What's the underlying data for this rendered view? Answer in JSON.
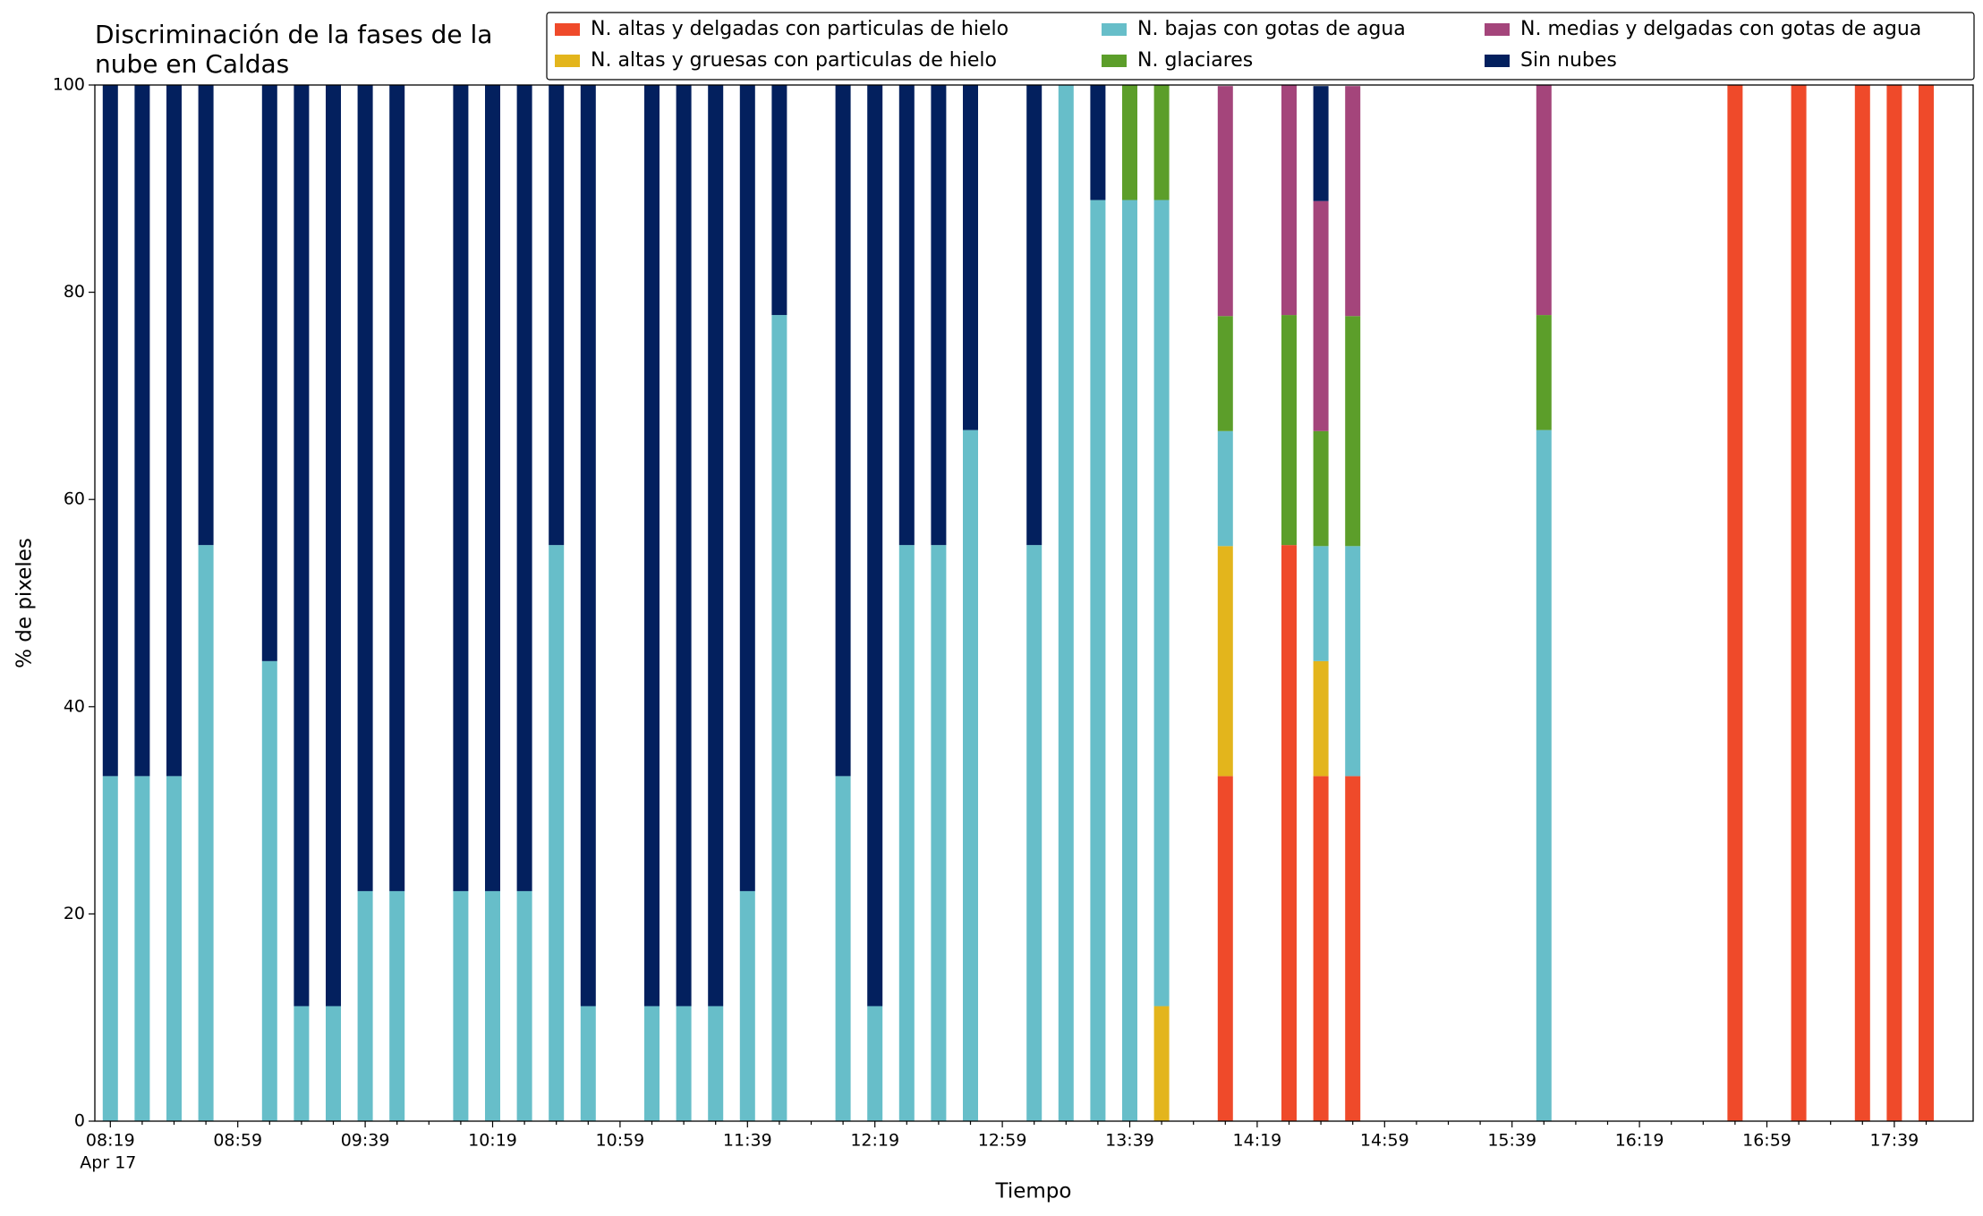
{
  "chart_data": {
    "type": "stacked_bar",
    "title": [
      "Discriminación de la fases de la",
      "nube en Caldas"
    ],
    "x_label": "Tiempo",
    "y_label": "% de pixeles",
    "date_label": "Apr 17",
    "categories": [
      "08:19",
      null,
      null,
      null,
      "08:59",
      null,
      null,
      null,
      "09:39",
      null,
      null,
      null,
      "10:19",
      null,
      null,
      null,
      "10:59",
      null,
      null,
      null,
      "11:39",
      null,
      null,
      null,
      "12:19",
      null,
      null,
      null,
      "12:59",
      null,
      null,
      null,
      "13:39",
      null,
      null,
      null,
      "14:19",
      null,
      null,
      null,
      "14:59",
      null,
      null,
      null,
      "15:39",
      null,
      null,
      null,
      "16:19",
      null,
      null,
      null,
      "16:59",
      null,
      null,
      null,
      "17:39",
      null
    ],
    "ylim": [
      0,
      100
    ],
    "yticks": [
      0,
      20,
      40,
      60,
      80,
      100
    ],
    "legend": "upper right",
    "series": [
      {
        "name": "N. altas y delgadas con particulas de hielo",
        "color": "#ef4a2a",
        "values": [
          null,
          null,
          null,
          null,
          null,
          null,
          null,
          null,
          null,
          null,
          null,
          null,
          null,
          null,
          null,
          null,
          null,
          null,
          null,
          null,
          null,
          null,
          null,
          null,
          null,
          null,
          null,
          null,
          null,
          null,
          null,
          null,
          null,
          null,
          null,
          33.3,
          null,
          55.6,
          33.3,
          33.3,
          null,
          null,
          null,
          null,
          null,
          null,
          null,
          null,
          null,
          null,
          null,
          100,
          null,
          100,
          null,
          100,
          100,
          100
        ]
      },
      {
        "name": "N. altas y gruesas con particulas de hielo",
        "color": "#e3b51c",
        "values": [
          null,
          null,
          null,
          null,
          null,
          null,
          null,
          null,
          null,
          null,
          null,
          null,
          null,
          null,
          null,
          null,
          null,
          null,
          null,
          null,
          null,
          null,
          null,
          null,
          null,
          null,
          null,
          null,
          null,
          null,
          null,
          null,
          null,
          11.1,
          null,
          22.2,
          null,
          null,
          11.1,
          null,
          null,
          null,
          null,
          null,
          null,
          null,
          null,
          null,
          null,
          null,
          null,
          null,
          null,
          null,
          null,
          null,
          null,
          null
        ]
      },
      {
        "name": "N. bajas con gotas de agua",
        "color": "#67bec9",
        "values": [
          33.3,
          33.3,
          33.3,
          55.6,
          null,
          44.4,
          11.1,
          11.1,
          22.2,
          22.2,
          null,
          22.2,
          22.2,
          22.2,
          55.6,
          11.1,
          null,
          11.1,
          11.1,
          11.1,
          22.2,
          77.8,
          null,
          33.3,
          11.1,
          55.6,
          55.6,
          66.7,
          null,
          55.6,
          100,
          88.9,
          88.9,
          77.8,
          null,
          11.1,
          null,
          null,
          11.1,
          22.2,
          null,
          null,
          null,
          null,
          null,
          66.7,
          null,
          null,
          null,
          null,
          null,
          null,
          null,
          null,
          null,
          null,
          null,
          null
        ]
      },
      {
        "name": "N. glaciares",
        "color": "#5c9e2a",
        "values": [
          null,
          null,
          null,
          null,
          null,
          null,
          null,
          null,
          null,
          null,
          null,
          null,
          null,
          null,
          null,
          null,
          null,
          null,
          null,
          null,
          null,
          null,
          null,
          null,
          null,
          null,
          null,
          null,
          null,
          null,
          null,
          null,
          11.1,
          11.1,
          null,
          11.1,
          null,
          22.2,
          11.1,
          22.2,
          null,
          null,
          null,
          null,
          null,
          11.1,
          null,
          null,
          null,
          null,
          null,
          null,
          null,
          null,
          null,
          null,
          null,
          null
        ]
      },
      {
        "name": "N. medias y delgadas con gotas de agua",
        "color": "#a4457b",
        "values": [
          null,
          null,
          null,
          null,
          null,
          null,
          null,
          null,
          null,
          null,
          null,
          null,
          null,
          null,
          null,
          null,
          null,
          null,
          null,
          null,
          null,
          null,
          null,
          null,
          null,
          null,
          null,
          null,
          null,
          null,
          null,
          null,
          null,
          null,
          null,
          22.2,
          null,
          22.2,
          22.2,
          22.2,
          null,
          null,
          null,
          null,
          null,
          22.2,
          null,
          null,
          null,
          null,
          null,
          null,
          null,
          null,
          null,
          null,
          null,
          null
        ]
      },
      {
        "name": "Sin nubes",
        "color": "#03205e",
        "values": [
          66.7,
          66.7,
          66.7,
          44.4,
          null,
          55.6,
          88.9,
          88.9,
          77.8,
          77.8,
          null,
          77.8,
          77.8,
          77.8,
          44.4,
          88.9,
          null,
          88.9,
          88.9,
          88.9,
          77.8,
          22.2,
          null,
          66.7,
          88.9,
          44.4,
          44.4,
          33.3,
          null,
          44.4,
          null,
          11.1,
          null,
          null,
          null,
          null,
          null,
          null,
          11.1,
          null,
          null,
          null,
          null,
          null,
          null,
          null,
          null,
          null,
          null,
          null,
          null,
          null,
          null,
          null,
          null,
          null,
          null,
          null
        ]
      }
    ]
  }
}
